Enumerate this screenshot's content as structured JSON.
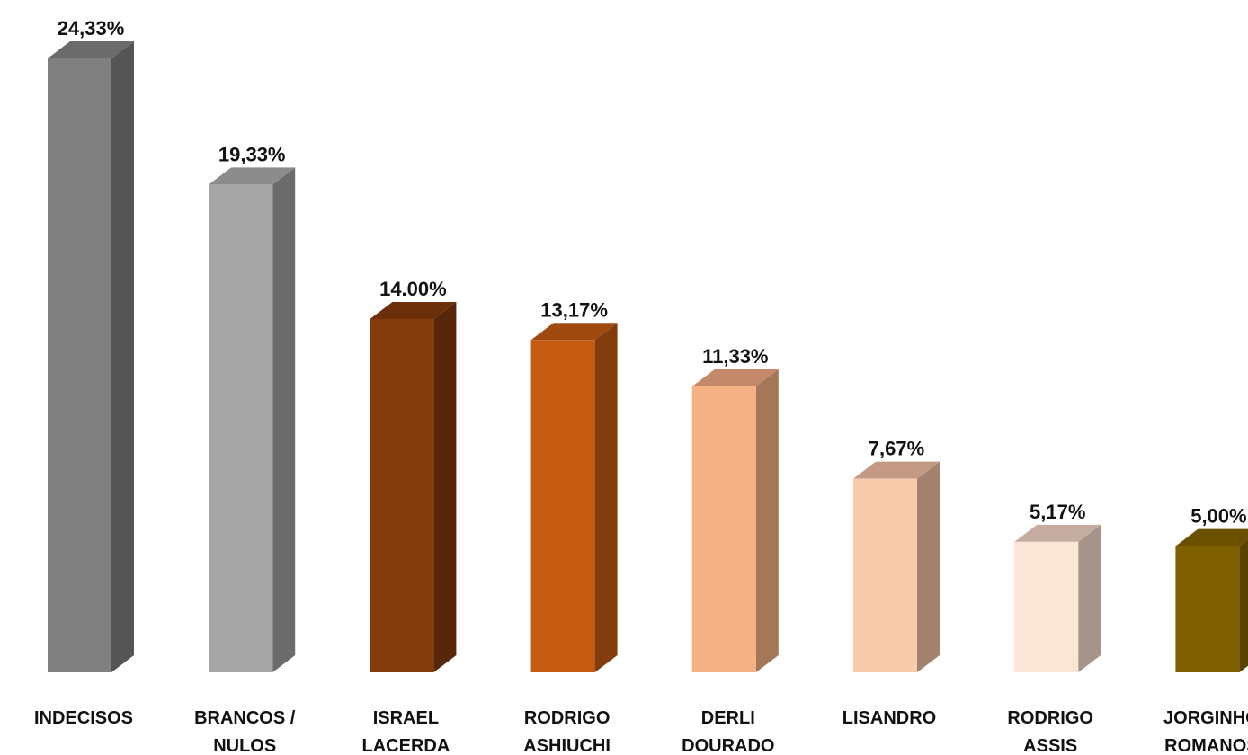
{
  "chart_data": {
    "type": "bar",
    "style": "3d",
    "categories": [
      [
        "INDECISOS"
      ],
      [
        "BRANCOS /",
        "NULOS"
      ],
      [
        "ISRAEL",
        "LACERDA"
      ],
      [
        "RODRIGO",
        "ASHIUCHI"
      ],
      [
        "DERLI",
        "DOURADO"
      ],
      [
        "LISANDRO"
      ],
      [
        "RODRIGO",
        "ASSIS"
      ],
      [
        "JORGINHO",
        "ROMANOS"
      ]
    ],
    "values": [
      24.33,
      19.33,
      14.0,
      13.17,
      11.33,
      7.67,
      5.17,
      5.0
    ],
    "labels": [
      "24,33%",
      "19,33%",
      "14.00%",
      "13,17%",
      "11,33%",
      "7,67%",
      "5,17%",
      "5,00%"
    ],
    "colors": [
      {
        "front": "#808080",
        "side": "#555555",
        "top": "#6b6b6b"
      },
      {
        "front": "#a6a6a6",
        "side": "#6b6b6b",
        "top": "#8c8c8c"
      },
      {
        "front": "#843c0c",
        "side": "#58260a",
        "top": "#6b300a"
      },
      {
        "front": "#c55a11",
        "side": "#843c0c",
        "top": "#a04a10"
      },
      {
        "front": "#f4b183",
        "side": "#a37757",
        "top": "#c4896a"
      },
      {
        "front": "#f8cbad",
        "side": "#a38270",
        "top": "#c59a85"
      },
      {
        "front": "#fbe5d6",
        "side": "#a6948a",
        "top": "#c5aca0"
      },
      {
        "front": "#7f6000",
        "side": "#5a4300",
        "top": "#6b5000"
      }
    ],
    "ylim": [
      0,
      24.33
    ],
    "grid": false,
    "legend": "none"
  }
}
